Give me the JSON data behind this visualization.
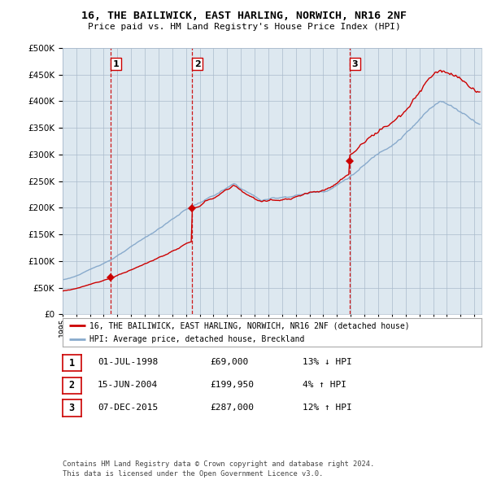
{
  "title": "16, THE BAILIWICK, EAST HARLING, NORWICH, NR16 2NF",
  "subtitle": "Price paid vs. HM Land Registry's House Price Index (HPI)",
  "ylim": [
    0,
    500000
  ],
  "yticks": [
    0,
    50000,
    100000,
    150000,
    200000,
    250000,
    300000,
    350000,
    400000,
    450000,
    500000
  ],
  "xlim_start": 1995.0,
  "xlim_end": 2025.5,
  "sales": [
    {
      "date_num": 1998.5,
      "price": 69000,
      "label": "1"
    },
    {
      "date_num": 2004.45,
      "price": 199950,
      "label": "2"
    },
    {
      "date_num": 2015.92,
      "price": 287000,
      "label": "3"
    }
  ],
  "legend_red": "16, THE BAILIWICK, EAST HARLING, NORWICH, NR16 2NF (detached house)",
  "legend_blue": "HPI: Average price, detached house, Breckland",
  "table_rows": [
    {
      "num": "1",
      "date": "01-JUL-1998",
      "price": "£69,000",
      "pct": "13% ↓ HPI"
    },
    {
      "num": "2",
      "date": "15-JUN-2004",
      "price": "£199,950",
      "pct": "4% ↑ HPI"
    },
    {
      "num": "3",
      "date": "07-DEC-2015",
      "price": "£287,000",
      "pct": "12% ↑ HPI"
    }
  ],
  "footer": "Contains HM Land Registry data © Crown copyright and database right 2024.\nThis data is licensed under the Open Government Licence v3.0.",
  "red_color": "#cc0000",
  "blue_color": "#88aacc",
  "dashed_color": "#cc0000",
  "bg_plot": "#dde8f0",
  "bg_color": "#ffffff",
  "grid_color": "#aabbcc"
}
